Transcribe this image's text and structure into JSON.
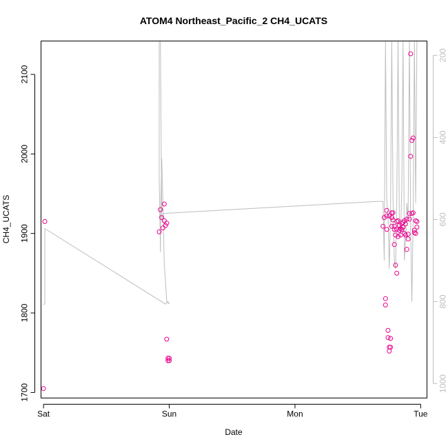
{
  "chart_data": {
    "type": "scatter",
    "title": "ATOM4 Northeast_Pacific_2 CH4_UCATS",
    "xlabel": "Date",
    "ylabel": "CH4_UCATS",
    "x_ticks": [
      "Sat",
      "Sun",
      "Mon",
      "Tue"
    ],
    "y_ticks": [
      1700,
      1800,
      1900,
      2000,
      2100
    ],
    "y2_ticks": [
      200,
      400,
      600,
      800,
      1000
    ],
    "xlim_days": [
      -0.02,
      3.05
    ],
    "ylim": [
      1693,
      2142
    ],
    "y2lim_reversed": [
      1035,
      165
    ],
    "points_color": "#e8008c",
    "line_color": "#bdbdbd",
    "grid": false,
    "legend": "none",
    "series": [
      {
        "kind": "points",
        "x": [
          0.0,
          0.01,
          0.92,
          0.93,
          0.94,
          0.95,
          0.96,
          0.96,
          0.97,
          0.98,
          0.98,
          0.99,
          0.99,
          1.0,
          1.0,
          2.7,
          2.71,
          2.72,
          2.72,
          2.73,
          2.73,
          2.73,
          2.74,
          2.74,
          2.75,
          2.75,
          2.75,
          2.76,
          2.76,
          2.77,
          2.77,
          2.77,
          2.78,
          2.78,
          2.79,
          2.79,
          2.79,
          2.8,
          2.8,
          2.81,
          2.81,
          2.81,
          2.82,
          2.82,
          2.83,
          2.83,
          2.84,
          2.84,
          2.85,
          2.85,
          2.86,
          2.86,
          2.87,
          2.87,
          2.88,
          2.88,
          2.89,
          2.89,
          2.9,
          2.9,
          2.91,
          2.91,
          2.92,
          2.92,
          2.93,
          2.93,
          2.94,
          2.94,
          2.95,
          2.95,
          2.96,
          2.96,
          2.97,
          2.97
        ],
        "y": [
          1705,
          1915,
          1902,
          1930,
          1920,
          1907,
          1916,
          1937,
          1910,
          1913,
          1767,
          1740,
          1743,
          1743,
          1740,
          1909,
          1920,
          1818,
          1810,
          1905,
          1929,
          1922,
          1778,
          1769,
          1922,
          1752,
          1757,
          1757,
          1768,
          1926,
          1909,
          1920,
          1926,
          1917,
          1909,
          1905,
          1886,
          1898,
          1860,
          1850,
          1915,
          1905,
          1916,
          1896,
          1904,
          1910,
          1906,
          1898,
          1912,
          1905,
          1914,
          1908,
          1916,
          1900,
          1912,
          1898,
          1880,
          1918,
          1893,
          1899,
          1925,
          1918,
          2126,
          1997,
          1925,
          2017,
          2020,
          1926,
          1901,
          1904,
          1916,
          1900,
          1908,
          1915
        ]
      },
      {
        "kind": "line",
        "axis": "right",
        "x": [
          0.0,
          0.01,
          0.01,
          0.97,
          0.99,
          1.0,
          0.98,
          0.97,
          0.96,
          0.95,
          0.94,
          0.93,
          0.93,
          0.92,
          0.92,
          0.93,
          0.93,
          0.94,
          0.95,
          0.96,
          2.65,
          2.7,
          2.71,
          2.72,
          2.73,
          2.74,
          2.75,
          2.76,
          2.77,
          2.78,
          2.79,
          2.8,
          2.81,
          2.82,
          2.83,
          2.84,
          2.85,
          2.86,
          2.87,
          2.88,
          2.89,
          2.9,
          2.91,
          2.92,
          2.93,
          2.94,
          2.95,
          2.96,
          2.97
        ],
        "y": [
          806,
          806,
          622,
          806,
          800,
          806,
          800,
          750,
          710,
          560,
          450,
          600,
          680,
          500,
          160,
          160,
          170,
          600,
          590,
          585,
          556,
          556,
          700,
          160,
          550,
          590,
          720,
          580,
          160,
          550,
          700,
          720,
          560,
          160,
          600,
          640,
          520,
          160,
          700,
          650,
          560,
          600,
          160,
          620,
          800,
          600,
          160,
          560,
          160
        ]
      }
    ]
  }
}
